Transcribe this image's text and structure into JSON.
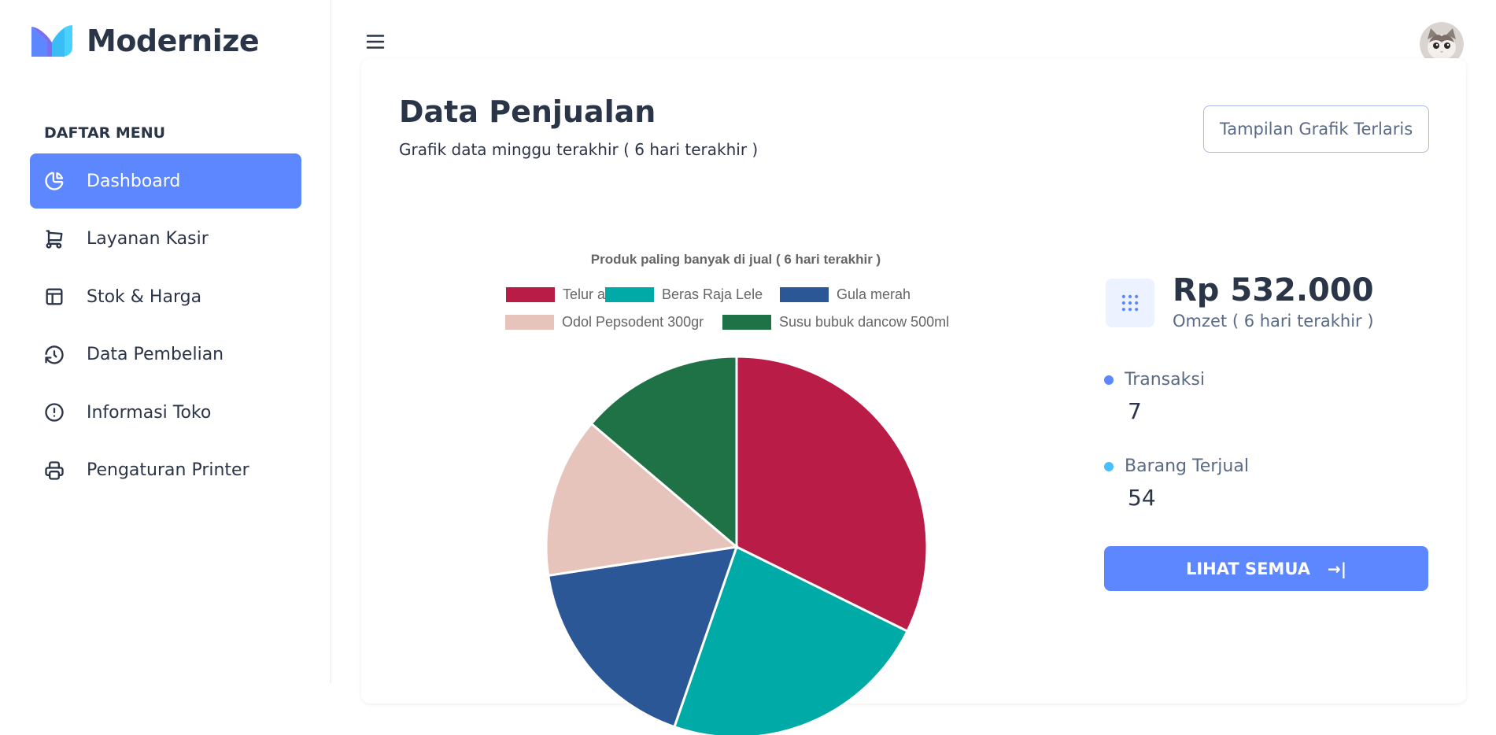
{
  "brand": {
    "name": "Modernize"
  },
  "sidebar": {
    "menu_title": "DAFTAR MENU",
    "items": [
      {
        "label": "Dashboard",
        "icon": "pie-chart-icon",
        "active": true
      },
      {
        "label": "Layanan Kasir",
        "icon": "cart-icon",
        "active": false
      },
      {
        "label": "Stok & Harga",
        "icon": "layout-icon",
        "active": false
      },
      {
        "label": "Data Pembelian",
        "icon": "history-icon",
        "active": false
      },
      {
        "label": "Informasi Toko",
        "icon": "info-circle-icon",
        "active": false
      },
      {
        "label": "Pengaturan Printer",
        "icon": "printer-icon",
        "active": false
      }
    ]
  },
  "header": {
    "menu_icon": "hamburger-icon",
    "avatar_icon": "cat-avatar"
  },
  "card": {
    "title": "Data Penjualan",
    "subtitle": "Grafik data minggu terakhir ( 6 hari terakhir )",
    "top_button": "Tampilan Grafik Terlaris"
  },
  "chart_data": {
    "type": "pie",
    "title": "Produk paling banyak di jual ( 6 hari terakhir )",
    "legend_position": "top",
    "categories": [
      "Telur ayam",
      "Beras Raja Lele",
      "Gula merah",
      "Odol Pepsodent 300gr",
      "Susu bubuk dancow 500ml"
    ],
    "values": [
      32.3,
      23.0,
      17.3,
      13.6,
      13.8
    ],
    "colors": [
      "#b91c47",
      "#00aaa7",
      "#2c5796",
      "#e7c4bb",
      "#1f7146"
    ]
  },
  "stats": {
    "omzet_value": "Rp 532.000",
    "omzet_label": "Omzet ( 6 hari terakhir )",
    "transaksi_label": "Transaksi",
    "transaksi_value": "7",
    "transaksi_color": "#5d87ff",
    "barang_label": "Barang Terjual",
    "barang_value": "54",
    "barang_color": "#49beff",
    "button_label": "LIHAT SEMUA",
    "button_arrow": "→|"
  },
  "colors": {
    "primary": "#5d87ff",
    "text": "#2a3547",
    "muted": "#5a6a85"
  }
}
